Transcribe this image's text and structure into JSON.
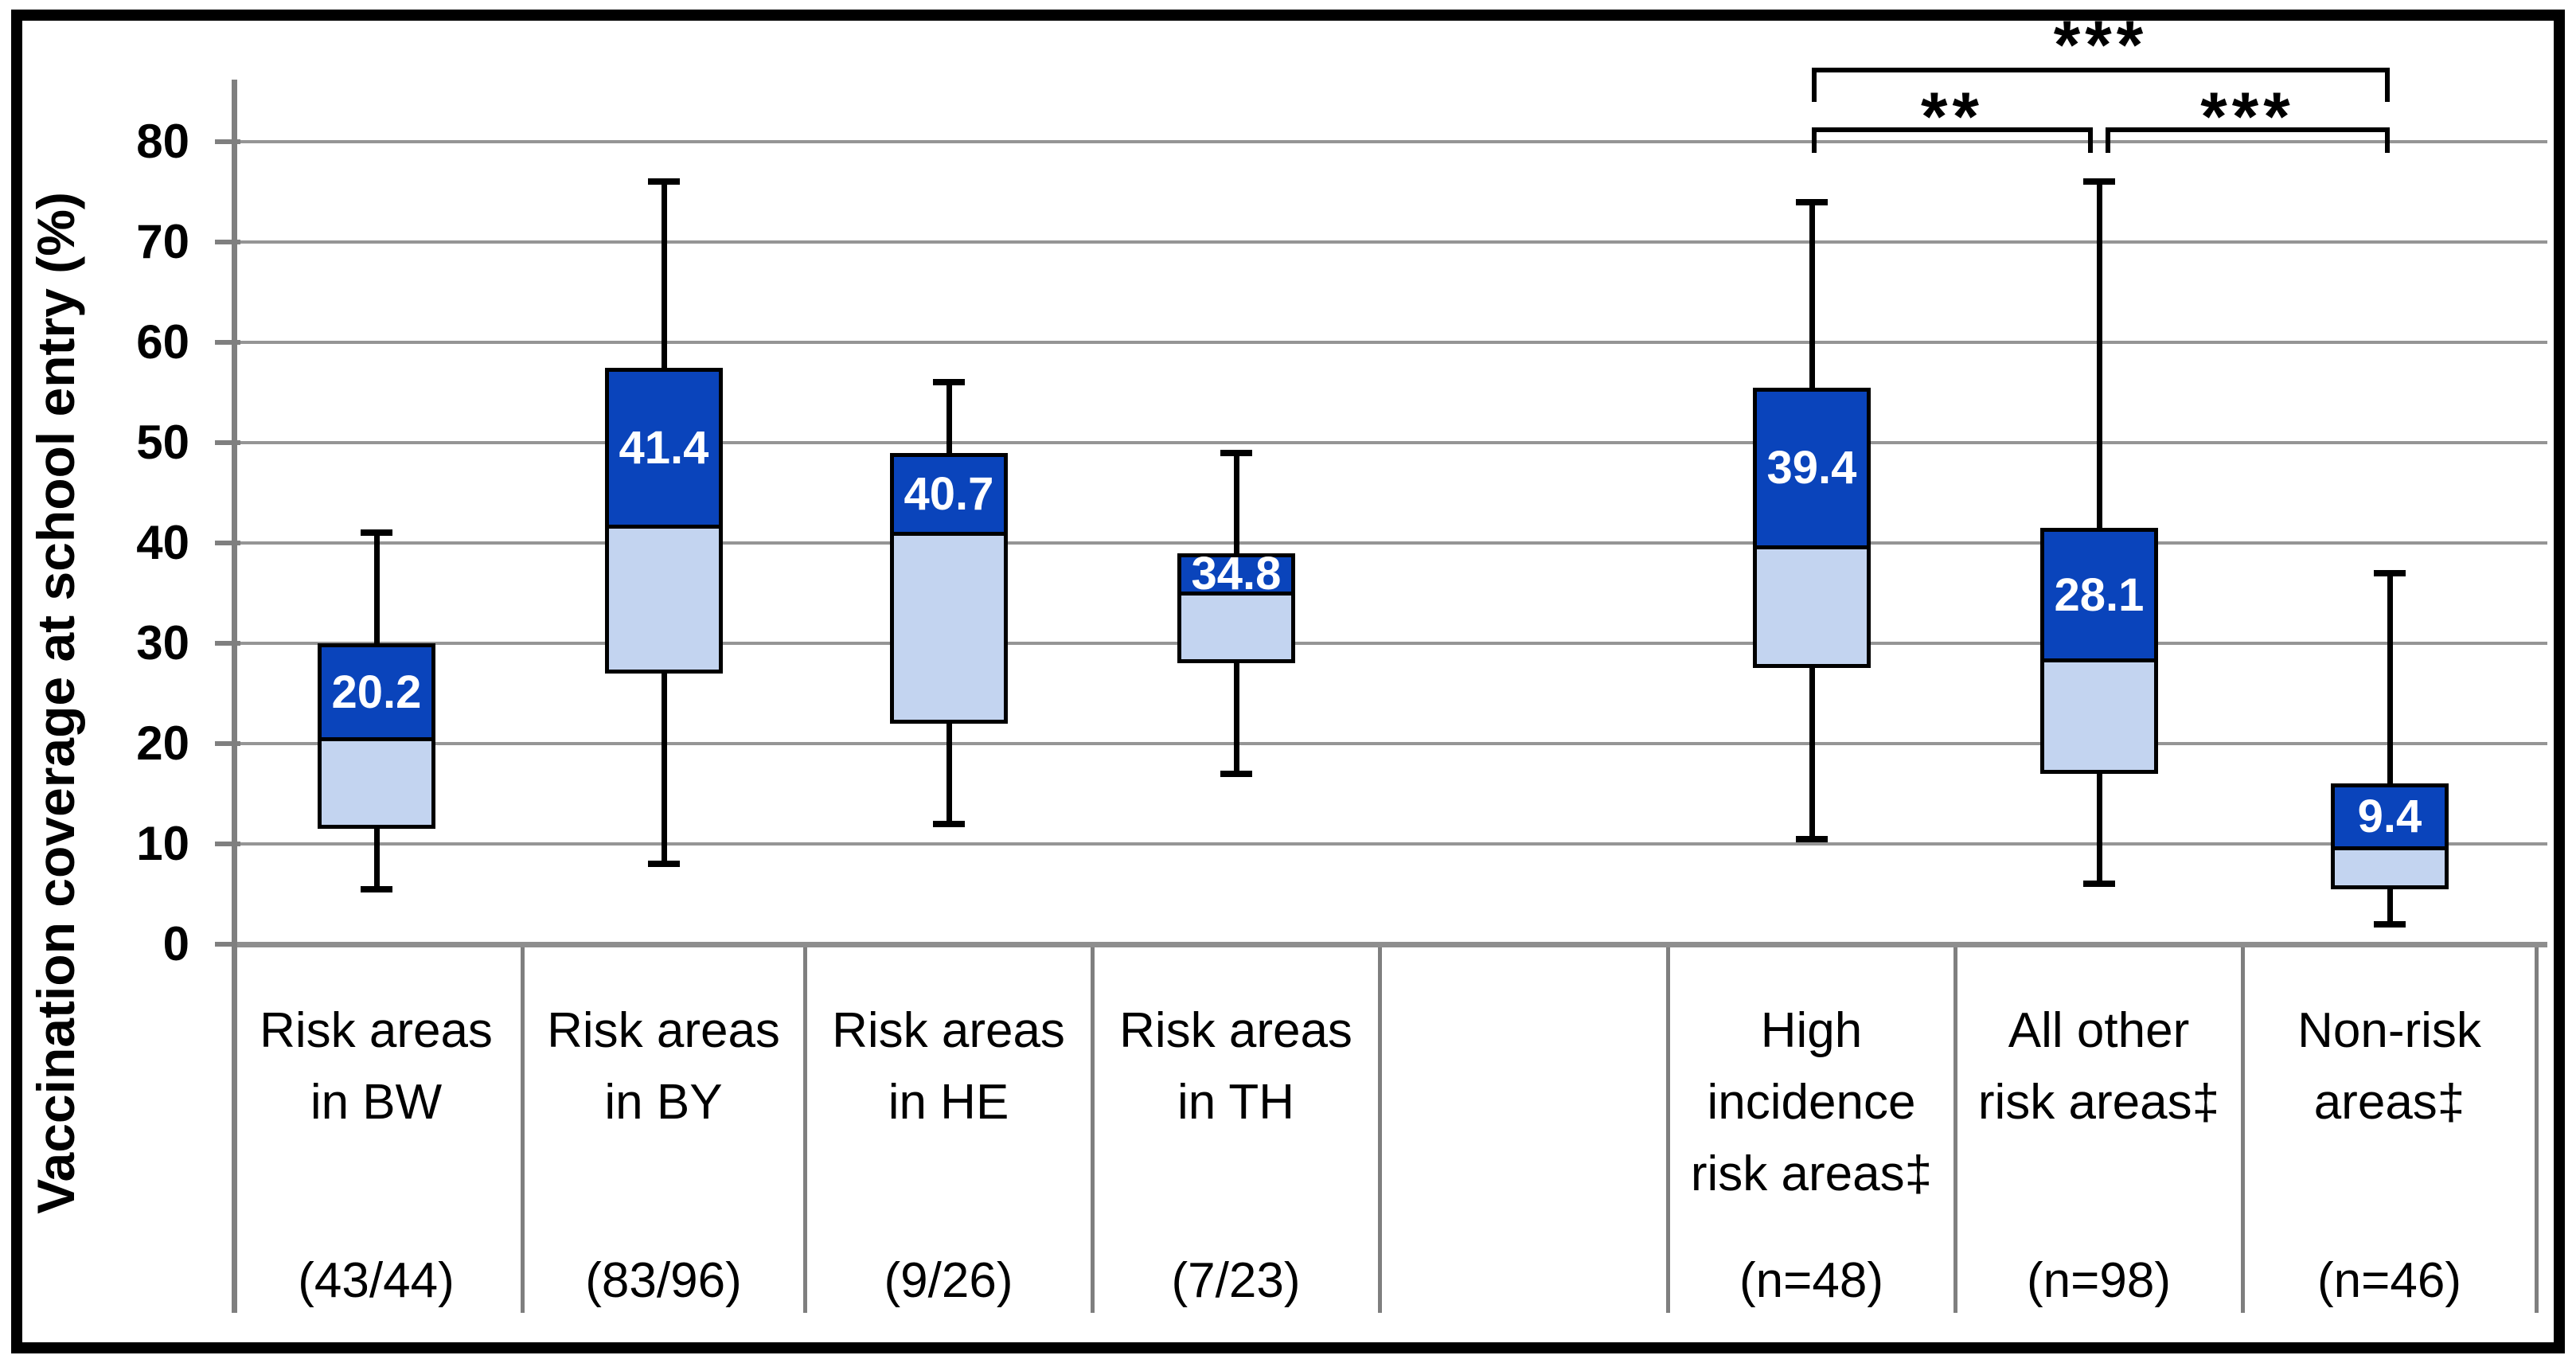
{
  "chart_data": {
    "type": "boxplot",
    "title": "",
    "ylabel": "Vaccination coverage at school entry (%)",
    "xlabel": "",
    "ylim": [
      0,
      85
    ],
    "yticks": [
      0,
      10,
      20,
      30,
      40,
      50,
      60,
      70,
      80
    ],
    "grid": "horizontal gray gridlines every 10",
    "legend": "none",
    "groups": [
      {
        "category": "Risk areas\nin BW",
        "sublabel": "(43/44)",
        "whisker_low": 5.5,
        "q1": 11.5,
        "median": 20.2,
        "q3": 30,
        "whisker_high": 41,
        "median_label": "20.2"
      },
      {
        "category": "Risk areas\nin BY",
        "sublabel": "(83/96)",
        "whisker_low": 8,
        "q1": 27,
        "median": 41.4,
        "q3": 57.5,
        "whisker_high": 76,
        "median_label": "41.4"
      },
      {
        "category": "Risk areas\nin HE",
        "sublabel": "(9/26)",
        "whisker_low": 12,
        "q1": 22,
        "median": 40.7,
        "q3": 49,
        "whisker_high": 56,
        "median_label": "40.7"
      },
      {
        "category": "Risk areas\nin TH",
        "sublabel": "(7/23)",
        "whisker_low": 17,
        "q1": 28,
        "median": 34.8,
        "q3": 39,
        "whisker_high": 49,
        "median_label": "34.8"
      },
      {
        "category": "",
        "sublabel": "",
        "spacer": true
      },
      {
        "category": "High\nincidence\nrisk areas‡",
        "sublabel": "(n=48)",
        "whisker_low": 10.5,
        "q1": 27.5,
        "median": 39.4,
        "q3": 55.5,
        "whisker_high": 74,
        "median_label": "39.4"
      },
      {
        "category": "All other\nrisk areas‡",
        "sublabel": "(n=98)",
        "whisker_low": 6,
        "q1": 17,
        "median": 28.1,
        "q3": 41.5,
        "whisker_high": 76,
        "median_label": "28.1"
      },
      {
        "category": "Non-risk\nareas‡",
        "sublabel": "(n=46)",
        "whisker_low": 2,
        "q1": 5.5,
        "median": 9.4,
        "q3": 16,
        "whisker_high": 37,
        "median_label": "9.4"
      }
    ],
    "significance_brackets": [
      {
        "label": "***",
        "from": 5,
        "to": 7,
        "row": "top"
      },
      {
        "label": "**",
        "from": 5,
        "to": 6,
        "row": "bottom"
      },
      {
        "label": "***",
        "from": 6,
        "to": 7,
        "row": "bottom"
      }
    ],
    "colors": {
      "box_upper_fill": "#0a44bb",
      "box_lower_fill": "#c3d4f0",
      "box_border": "#000000",
      "median_text": "#ffffff",
      "whisker": "#000000",
      "gridline": "#959595",
      "axis_gray": "#7f7f7f",
      "frame": "#000000",
      "background": "#ffffff"
    }
  }
}
